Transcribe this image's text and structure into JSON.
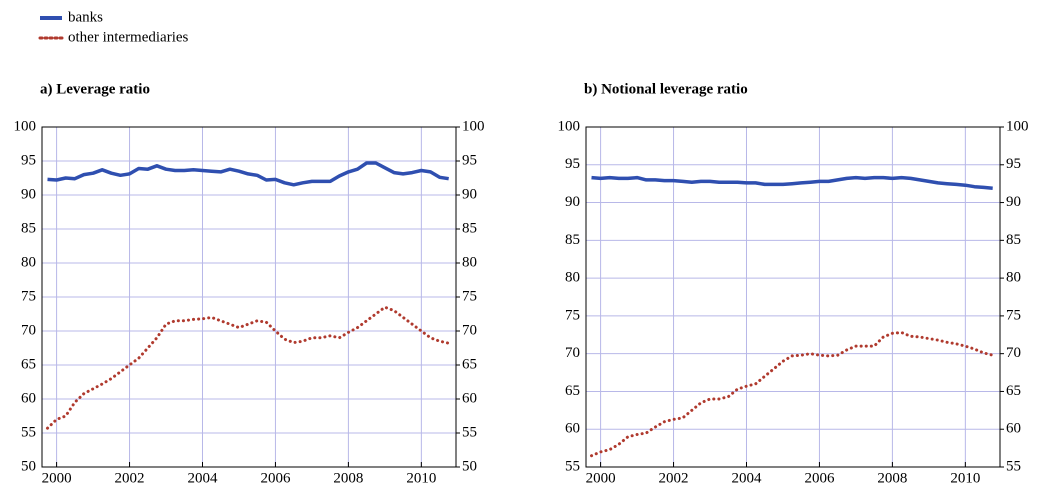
{
  "chart_data": [
    {
      "type": "line",
      "title": "a) Leverage ratio",
      "x": [
        1999.75,
        2000,
        2000.25,
        2000.5,
        2000.75,
        2001,
        2001.25,
        2001.5,
        2001.75,
        2002,
        2002.25,
        2002.5,
        2002.75,
        2003,
        2003.25,
        2003.5,
        2003.75,
        2004,
        2004.25,
        2004.5,
        2004.75,
        2005,
        2005.25,
        2005.5,
        2005.75,
        2006,
        2006.25,
        2006.5,
        2006.75,
        2007,
        2007.25,
        2007.5,
        2007.75,
        2008,
        2008.25,
        2008.5,
        2008.75,
        2009,
        2009.25,
        2009.5,
        2009.75,
        2010,
        2010.25,
        2010.5,
        2010.75
      ],
      "series": [
        {
          "name": "banks",
          "color": "#2f4fb0",
          "style": "solid",
          "values": [
            92.3,
            92.2,
            92.5,
            92.4,
            93,
            93.2,
            93.7,
            93.2,
            92.9,
            93.1,
            93.9,
            93.8,
            94.3,
            93.8,
            93.6,
            93.6,
            93.7,
            93.6,
            93.5,
            93.4,
            93.8,
            93.5,
            93.1,
            92.9,
            92.2,
            92.3,
            91.8,
            91.5,
            91.8,
            92,
            92,
            92,
            92.8,
            93.4,
            93.8,
            94.7,
            94.7,
            94,
            93.3,
            93.1,
            93.3,
            93.6,
            93.4,
            92.6,
            92.4
          ]
        },
        {
          "name": "other intermediaries",
          "color": "#b03a2e",
          "style": "dotted",
          "values": [
            55.7,
            57,
            57.5,
            59.5,
            60.8,
            61.5,
            62.2,
            63,
            64,
            65,
            66,
            67.5,
            69,
            71,
            71.5,
            71.5,
            71.7,
            71.8,
            72,
            71.5,
            71,
            70.5,
            71,
            71.5,
            71.3,
            70,
            68.8,
            68.3,
            68.5,
            69,
            69,
            69.3,
            69,
            69.8,
            70.5,
            71.5,
            72.5,
            73.5,
            73,
            72,
            71,
            70,
            69,
            68.5,
            68.2
          ]
        }
      ],
      "xlim": [
        1999.6,
        2010.95
      ],
      "xticks": [
        2000,
        2002,
        2004,
        2006,
        2008,
        2010
      ],
      "ylim": [
        50,
        100
      ],
      "yticks": [
        50,
        55,
        60,
        65,
        70,
        75,
        80,
        85,
        90,
        95,
        100
      ],
      "y2lim": [
        50,
        100
      ],
      "y2ticks": [
        50,
        55,
        60,
        65,
        70,
        75,
        80,
        85,
        90,
        95,
        100
      ],
      "grid": true
    },
    {
      "type": "line",
      "title": "b) Notional leverage ratio",
      "x": [
        1999.75,
        2000,
        2000.25,
        2000.5,
        2000.75,
        2001,
        2001.25,
        2001.5,
        2001.75,
        2002,
        2002.25,
        2002.5,
        2002.75,
        2003,
        2003.25,
        2003.5,
        2003.75,
        2004,
        2004.25,
        2004.5,
        2004.75,
        2005,
        2005.25,
        2005.5,
        2005.75,
        2006,
        2006.25,
        2006.5,
        2006.75,
        2007,
        2007.25,
        2007.5,
        2007.75,
        2008,
        2008.25,
        2008.5,
        2008.75,
        2009,
        2009.25,
        2009.5,
        2009.75,
        2010,
        2010.25,
        2010.5,
        2010.75
      ],
      "series": [
        {
          "color": "#2f4fb0",
          "style": "solid",
          "values": [
            93.3,
            93.2,
            93.3,
            93.2,
            93.2,
            93.3,
            93,
            93,
            92.9,
            92.9,
            92.8,
            92.7,
            92.8,
            92.8,
            92.7,
            92.7,
            92.7,
            92.6,
            92.6,
            92.4,
            92.4,
            92.4,
            92.5,
            92.6,
            92.7,
            92.8,
            92.8,
            93,
            93.2,
            93.3,
            93.2,
            93.3,
            93.3,
            93.2,
            93.3,
            93.2,
            93,
            92.8,
            92.6,
            92.5,
            92.4,
            92.3,
            92.1,
            92,
            91.9
          ]
        },
        {
          "color": "#b03a2e",
          "style": "dotted",
          "values": [
            56.5,
            57,
            57.3,
            58,
            59,
            59.3,
            59.5,
            60.3,
            61,
            61.3,
            61.5,
            62.5,
            63.5,
            64,
            64,
            64.3,
            65.3,
            65.7,
            66,
            67,
            68,
            69,
            69.7,
            69.8,
            70,
            69.8,
            69.7,
            69.8,
            70.5,
            71,
            71,
            71,
            72.2,
            72.7,
            72.8,
            72.3,
            72.2,
            72,
            71.8,
            71.5,
            71.3,
            71,
            70.6,
            70.1,
            69.8
          ]
        }
      ],
      "xlim": [
        1999.6,
        2010.95
      ],
      "xticks": [
        2000,
        2002,
        2004,
        2006,
        2008,
        2010
      ],
      "ylim": [
        55,
        100
      ],
      "yticks": [
        55,
        60,
        65,
        70,
        75,
        80,
        85,
        90,
        95,
        100
      ],
      "y2lim": [
        55,
        100
      ],
      "y2ticks": [
        55,
        60,
        65,
        70,
        75,
        80,
        85,
        90,
        95,
        100
      ],
      "grid": true
    }
  ]
}
